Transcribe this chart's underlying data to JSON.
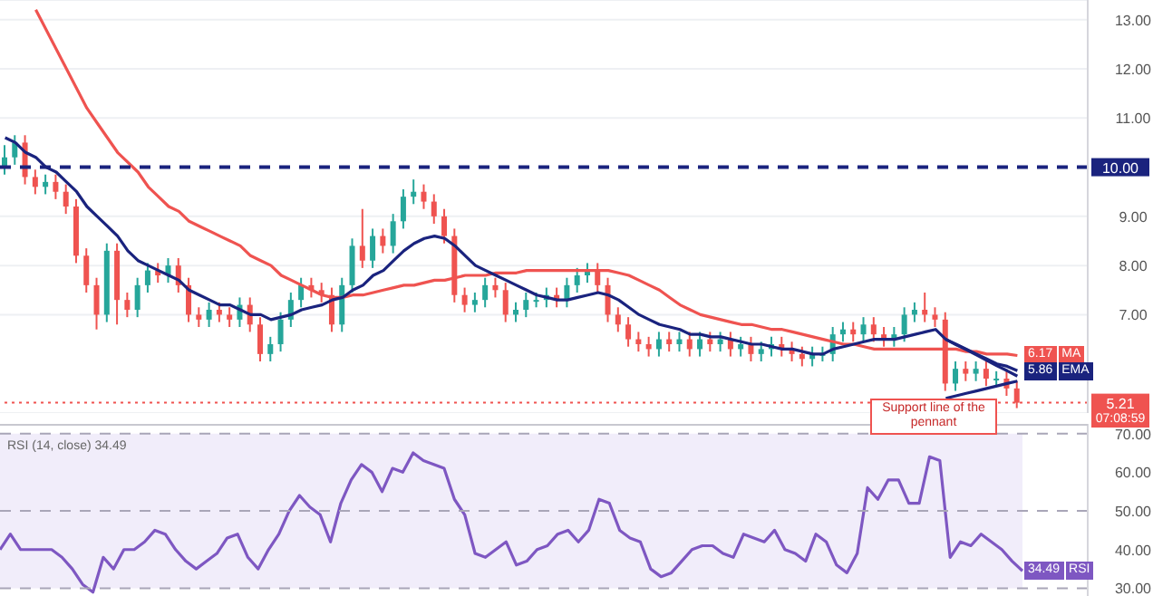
{
  "chart_data": [
    {
      "type": "candlestick",
      "categories": [
        null,
        null,
        null,
        null,
        null,
        null,
        null,
        null,
        null,
        null,
        null,
        null,
        null,
        null,
        null,
        null,
        null,
        null,
        null,
        null,
        null,
        null,
        null,
        null,
        null,
        null,
        null,
        null,
        null,
        null,
        null,
        null,
        null,
        null,
        null,
        null,
        null,
        null,
        null,
        null,
        null,
        null,
        null,
        null,
        null,
        null,
        null,
        null,
        null,
        null,
        null,
        null,
        null,
        null,
        null,
        null,
        null,
        null,
        null,
        null,
        null,
        null,
        null,
        null,
        null,
        null,
        null,
        null,
        null,
        null,
        null,
        null,
        null,
        null,
        null,
        null,
        null,
        null,
        null,
        null,
        null,
        null,
        null,
        null,
        null,
        null,
        null,
        null,
        null,
        null,
        null,
        null,
        null,
        null,
        null,
        null,
        null,
        null,
        null,
        null
      ],
      "ohlc": [
        [
          10.0,
          10.45,
          9.85,
          10.2
        ],
        [
          10.2,
          10.65,
          10.05,
          10.5
        ],
        [
          10.5,
          10.65,
          9.65,
          9.8
        ],
        [
          9.8,
          9.95,
          9.45,
          9.6
        ],
        [
          9.6,
          9.85,
          9.45,
          9.7
        ],
        [
          9.7,
          9.85,
          9.35,
          9.5
        ],
        [
          9.5,
          9.65,
          9.05,
          9.2
        ],
        [
          9.2,
          9.35,
          8.05,
          8.2
        ],
        [
          8.2,
          8.35,
          7.45,
          7.6
        ],
        [
          7.6,
          7.75,
          6.7,
          7.0
        ],
        [
          7.0,
          8.45,
          6.85,
          8.3
        ],
        [
          8.3,
          8.45,
          6.8,
          7.3
        ],
        [
          7.3,
          7.45,
          6.95,
          7.1
        ],
        [
          7.1,
          7.75,
          6.95,
          7.6
        ],
        [
          7.6,
          8.05,
          7.45,
          7.9
        ],
        [
          7.9,
          8.05,
          7.65,
          7.8
        ],
        [
          7.8,
          8.15,
          7.65,
          8.0
        ],
        [
          8.0,
          8.15,
          7.45,
          7.6
        ],
        [
          7.6,
          7.75,
          6.85,
          7.0
        ],
        [
          7.0,
          7.15,
          6.75,
          6.9
        ],
        [
          6.9,
          7.25,
          6.75,
          7.1
        ],
        [
          7.1,
          7.25,
          6.85,
          7.0
        ],
        [
          7.0,
          7.15,
          6.75,
          6.9
        ],
        [
          6.9,
          7.35,
          6.75,
          7.2
        ],
        [
          7.2,
          7.35,
          6.65,
          6.8
        ],
        [
          6.8,
          6.95,
          6.05,
          6.2
        ],
        [
          6.2,
          6.55,
          6.05,
          6.4
        ],
        [
          6.4,
          7.05,
          6.25,
          6.9
        ],
        [
          6.9,
          7.45,
          6.75,
          7.3
        ],
        [
          7.3,
          7.75,
          7.15,
          7.6
        ],
        [
          7.6,
          7.75,
          7.35,
          7.5
        ],
        [
          7.5,
          7.65,
          7.25,
          7.4
        ],
        [
          7.4,
          7.55,
          6.65,
          6.8
        ],
        [
          6.8,
          7.75,
          6.65,
          7.6
        ],
        [
          7.6,
          8.55,
          7.45,
          8.4
        ],
        [
          8.4,
          9.15,
          7.95,
          8.1
        ],
        [
          8.1,
          8.75,
          7.95,
          8.6
        ],
        [
          8.6,
          8.75,
          8.25,
          8.4
        ],
        [
          8.4,
          9.05,
          8.25,
          8.9
        ],
        [
          8.9,
          9.55,
          8.75,
          9.4
        ],
        [
          9.4,
          9.75,
          9.25,
          9.5
        ],
        [
          9.5,
          9.65,
          9.15,
          9.3
        ],
        [
          9.3,
          9.45,
          8.85,
          9.0
        ],
        [
          9.0,
          9.15,
          8.45,
          8.6
        ],
        [
          8.6,
          8.75,
          7.25,
          7.4
        ],
        [
          7.4,
          7.55,
          7.05,
          7.2
        ],
        [
          7.2,
          7.45,
          7.05,
          7.3
        ],
        [
          7.3,
          7.75,
          7.15,
          7.6
        ],
        [
          7.6,
          7.75,
          7.35,
          7.5
        ],
        [
          7.5,
          7.65,
          6.85,
          7.0
        ],
        [
          7.0,
          7.25,
          6.85,
          7.1
        ],
        [
          7.1,
          7.45,
          6.95,
          7.3
        ],
        [
          7.3,
          7.45,
          7.15,
          7.3
        ],
        [
          7.3,
          7.55,
          7.15,
          7.4
        ],
        [
          7.4,
          7.55,
          7.15,
          7.3
        ],
        [
          7.3,
          7.75,
          7.15,
          7.6
        ],
        [
          7.6,
          7.95,
          7.45,
          7.8
        ],
        [
          7.8,
          8.05,
          7.65,
          7.9
        ],
        [
          7.9,
          8.05,
          7.45,
          7.6
        ],
        [
          7.6,
          7.75,
          6.85,
          7.0
        ],
        [
          7.0,
          7.15,
          6.65,
          6.8
        ],
        [
          6.8,
          6.95,
          6.35,
          6.5
        ],
        [
          6.5,
          6.65,
          6.25,
          6.4
        ],
        [
          6.4,
          6.55,
          6.15,
          6.3
        ],
        [
          6.3,
          6.65,
          6.15,
          6.5
        ],
        [
          6.5,
          6.65,
          6.25,
          6.4
        ],
        [
          6.4,
          6.65,
          6.25,
          6.5
        ],
        [
          6.5,
          6.65,
          6.15,
          6.3
        ],
        [
          6.3,
          6.65,
          6.15,
          6.5
        ],
        [
          6.5,
          6.65,
          6.25,
          6.4
        ],
        [
          6.4,
          6.65,
          6.25,
          6.5
        ],
        [
          6.5,
          6.65,
          6.15,
          6.3
        ],
        [
          6.3,
          6.55,
          6.15,
          6.4
        ],
        [
          6.4,
          6.55,
          6.05,
          6.2
        ],
        [
          6.2,
          6.45,
          6.05,
          6.3
        ],
        [
          6.3,
          6.55,
          6.15,
          6.4
        ],
        [
          6.4,
          6.55,
          6.15,
          6.3
        ],
        [
          6.3,
          6.45,
          6.05,
          6.2
        ],
        [
          6.2,
          6.35,
          5.95,
          6.1
        ],
        [
          6.1,
          6.35,
          5.95,
          6.2
        ],
        [
          6.2,
          6.35,
          6.05,
          6.2
        ],
        [
          6.2,
          6.75,
          6.05,
          6.6
        ],
        [
          6.6,
          6.85,
          6.45,
          6.7
        ],
        [
          6.7,
          6.85,
          6.45,
          6.6
        ],
        [
          6.6,
          6.95,
          6.45,
          6.8
        ],
        [
          6.8,
          6.95,
          6.45,
          6.6
        ],
        [
          6.6,
          6.75,
          6.35,
          6.5
        ],
        [
          6.5,
          6.75,
          6.35,
          6.6
        ],
        [
          6.6,
          7.15,
          6.45,
          7.0
        ],
        [
          7.0,
          7.25,
          6.85,
          7.1
        ],
        [
          7.1,
          7.45,
          6.85,
          7.0
        ],
        [
          7.0,
          7.15,
          6.75,
          6.9
        ],
        [
          6.9,
          7.05,
          5.45,
          5.6
        ],
        [
          5.6,
          6.05,
          5.45,
          5.9
        ],
        [
          5.9,
          6.05,
          5.65,
          5.8
        ],
        [
          5.8,
          6.05,
          5.65,
          5.9
        ],
        [
          5.9,
          6.05,
          5.55,
          5.7
        ],
        [
          5.7,
          5.85,
          5.55,
          5.7
        ],
        [
          5.7,
          5.85,
          5.35,
          5.5
        ],
        [
          5.5,
          5.65,
          5.1,
          5.21
        ]
      ],
      "series": [
        {
          "name": "MA",
          "type": "line",
          "color": "#ef5350",
          "value_labels": [
            null,
            null,
            null,
            null,
            null,
            null,
            null,
            null,
            null,
            null,
            null,
            null,
            null,
            null,
            null,
            null,
            null,
            null,
            null,
            null,
            null,
            null,
            null,
            null,
            null,
            null,
            null,
            null,
            null,
            null,
            null,
            null,
            null,
            null,
            null,
            null,
            null,
            null,
            null,
            null,
            null,
            null,
            null,
            null,
            null,
            null,
            null,
            null,
            null,
            null,
            null,
            null,
            null,
            null,
            null,
            null,
            null,
            null,
            null,
            null,
            null,
            null,
            null,
            null,
            null,
            null,
            null,
            null,
            null,
            null,
            null,
            null,
            null,
            null,
            null,
            null,
            null,
            null,
            null,
            null,
            null,
            null,
            null,
            null,
            null,
            null,
            null,
            null,
            null,
            null,
            null,
            null,
            null,
            null,
            null,
            null,
            null,
            null,
            null,
            "6.17"
          ],
          "values": [
            null,
            null,
            null,
            13.2,
            12.8,
            12.4,
            12.0,
            11.6,
            11.2,
            10.9,
            10.6,
            10.3,
            10.1,
            9.9,
            9.6,
            9.4,
            9.2,
            9.1,
            8.9,
            8.8,
            8.7,
            8.6,
            8.5,
            8.4,
            8.2,
            8.1,
            8.0,
            7.8,
            7.7,
            7.6,
            7.5,
            7.4,
            7.35,
            7.35,
            7.4,
            7.4,
            7.45,
            7.5,
            7.55,
            7.6,
            7.6,
            7.65,
            7.7,
            7.7,
            7.75,
            7.8,
            7.8,
            7.8,
            7.85,
            7.85,
            7.85,
            7.9,
            7.9,
            7.9,
            7.9,
            7.9,
            7.9,
            7.9,
            7.9,
            7.9,
            7.85,
            7.8,
            7.7,
            7.6,
            7.5,
            7.35,
            7.2,
            7.1,
            7.0,
            6.95,
            6.9,
            6.85,
            6.8,
            6.8,
            6.75,
            6.7,
            6.7,
            6.65,
            6.6,
            6.55,
            6.5,
            6.45,
            6.4,
            6.4,
            6.35,
            6.3,
            6.3,
            6.3,
            6.3,
            6.3,
            6.3,
            6.3,
            6.3,
            6.3,
            6.25,
            6.25,
            6.2,
            6.2,
            6.2,
            6.17
          ]
        },
        {
          "name": "EMA",
          "type": "line",
          "color": "#1a237e",
          "value_labels": [
            null,
            null,
            null,
            null,
            null,
            null,
            null,
            null,
            null,
            null,
            null,
            null,
            null,
            null,
            null,
            null,
            null,
            null,
            null,
            null,
            null,
            null,
            null,
            null,
            null,
            null,
            null,
            null,
            null,
            null,
            null,
            null,
            null,
            null,
            null,
            null,
            null,
            null,
            null,
            null,
            null,
            null,
            null,
            null,
            null,
            null,
            null,
            null,
            null,
            null,
            null,
            null,
            null,
            null,
            null,
            null,
            null,
            null,
            null,
            null,
            null,
            null,
            null,
            null,
            null,
            null,
            null,
            null,
            null,
            null,
            null,
            null,
            null,
            null,
            null,
            null,
            null,
            null,
            null,
            null,
            null,
            null,
            null,
            null,
            null,
            null,
            null,
            null,
            null,
            null,
            null,
            null,
            null,
            null,
            null,
            null,
            null,
            null,
            null,
            "5.86"
          ],
          "values": [
            10.6,
            10.5,
            10.3,
            10.2,
            10.0,
            9.9,
            9.7,
            9.5,
            9.2,
            9.0,
            8.8,
            8.6,
            8.3,
            8.1,
            8.0,
            7.9,
            7.8,
            7.7,
            7.5,
            7.4,
            7.3,
            7.2,
            7.2,
            7.1,
            7.0,
            7.0,
            6.9,
            6.95,
            7.0,
            7.1,
            7.15,
            7.2,
            7.3,
            7.35,
            7.5,
            7.6,
            7.8,
            7.9,
            8.1,
            8.3,
            8.45,
            8.55,
            8.6,
            8.55,
            8.4,
            8.2,
            8.0,
            7.9,
            7.8,
            7.7,
            7.6,
            7.5,
            7.4,
            7.35,
            7.3,
            7.3,
            7.35,
            7.4,
            7.45,
            7.4,
            7.3,
            7.15,
            7.0,
            6.9,
            6.8,
            6.75,
            6.7,
            6.6,
            6.6,
            6.55,
            6.55,
            6.5,
            6.45,
            6.4,
            6.4,
            6.35,
            6.3,
            6.3,
            6.25,
            6.2,
            6.2,
            6.3,
            6.35,
            6.4,
            6.45,
            6.5,
            6.5,
            6.5,
            6.55,
            6.6,
            6.65,
            6.7,
            6.5,
            6.4,
            6.3,
            6.2,
            6.1,
            6.0,
            5.95,
            5.86
          ]
        },
        {
          "type": "line",
          "color": "#1a237e",
          "values": [
            null,
            null,
            null,
            null,
            null,
            null,
            null,
            null,
            null,
            null,
            null,
            null,
            null,
            null,
            null,
            null,
            null,
            null,
            null,
            null,
            null,
            null,
            null,
            null,
            null,
            null,
            null,
            null,
            null,
            null,
            null,
            null,
            null,
            null,
            null,
            null,
            null,
            null,
            null,
            null,
            null,
            null,
            null,
            null,
            null,
            null,
            null,
            null,
            null,
            null,
            null,
            null,
            null,
            null,
            null,
            null,
            null,
            null,
            null,
            null,
            null,
            null,
            null,
            null,
            null,
            null,
            null,
            null,
            null,
            null,
            null,
            null,
            null,
            null,
            null,
            null,
            null,
            null,
            null,
            null,
            null,
            null,
            null,
            null,
            null,
            null,
            null,
            null,
            null,
            null,
            null,
            null,
            6.5,
            6.39,
            6.29,
            6.18,
            6.07,
            5.96,
            5.86,
            5.75
          ]
        },
        {
          "type": "line",
          "color": "#1a237e",
          "values": [
            null,
            null,
            null,
            null,
            null,
            null,
            null,
            null,
            null,
            null,
            null,
            null,
            null,
            null,
            null,
            null,
            null,
            null,
            null,
            null,
            null,
            null,
            null,
            null,
            null,
            null,
            null,
            null,
            null,
            null,
            null,
            null,
            null,
            null,
            null,
            null,
            null,
            null,
            null,
            null,
            null,
            null,
            null,
            null,
            null,
            null,
            null,
            null,
            null,
            null,
            null,
            null,
            null,
            null,
            null,
            null,
            null,
            null,
            null,
            null,
            null,
            null,
            null,
            null,
            null,
            null,
            null,
            null,
            null,
            null,
            null,
            null,
            null,
            null,
            null,
            null,
            null,
            null,
            null,
            null,
            null,
            null,
            null,
            null,
            null,
            null,
            null,
            null,
            null,
            null,
            null,
            null,
            5.3,
            5.35,
            5.4,
            5.45,
            5.5,
            5.55,
            5.6,
            5.65
          ]
        }
      ],
      "ylim": [
        5.0,
        13.4
      ],
      "yticks": [
        {
          "value": 7,
          "label": "7.00"
        },
        {
          "value": 8,
          "label": "8.00"
        },
        {
          "value": 9,
          "label": "9.00"
        },
        {
          "value": 11,
          "label": "11.00"
        },
        {
          "value": 12,
          "label": "12.00"
        },
        {
          "value": 13,
          "label": "13.00"
        }
      ],
      "ref_lines": [
        {
          "axis": "y",
          "value": 10,
          "label": "10.00",
          "color": "#1a237e",
          "line_style": "dashed"
        },
        {
          "axis": "y",
          "value": 5.21,
          "label": "5.21",
          "color": "#ef5350",
          "line_style": "dotted"
        }
      ],
      "annotations": [
        "Support line of the pennant",
        "07:08:59"
      ],
      "grid": "y",
      "tick_labels": "y",
      "legend": "right"
    },
    {
      "type": "line",
      "title": "RSI (14, close) 34.49",
      "categories": [
        null,
        null,
        null,
        null,
        null,
        null,
        null,
        null,
        null,
        null,
        null,
        null,
        null,
        null,
        null,
        null,
        null,
        null,
        null,
        null,
        null,
        null,
        null,
        null,
        null,
        null,
        null,
        null,
        null,
        null,
        null,
        null,
        null,
        null,
        null,
        null,
        null,
        null,
        null,
        null,
        null,
        null,
        null,
        null,
        null,
        null,
        null,
        null,
        null,
        null,
        null,
        null,
        null,
        null,
        null,
        null,
        null,
        null,
        null,
        null,
        null,
        null,
        null,
        null,
        null,
        null,
        null,
        null,
        null,
        null,
        null,
        null,
        null,
        null,
        null,
        null,
        null,
        null,
        null,
        null,
        null,
        null,
        null,
        null,
        null,
        null,
        null,
        null,
        null,
        null,
        null,
        null,
        null,
        null,
        null,
        null,
        null,
        null,
        null,
        null
      ],
      "series": [
        {
          "name": "RSI",
          "color": "#7e57c2",
          "value_labels": [
            null,
            null,
            null,
            null,
            null,
            null,
            null,
            null,
            null,
            null,
            null,
            null,
            null,
            null,
            null,
            null,
            null,
            null,
            null,
            null,
            null,
            null,
            null,
            null,
            null,
            null,
            null,
            null,
            null,
            null,
            null,
            null,
            null,
            null,
            null,
            null,
            null,
            null,
            null,
            null,
            null,
            null,
            null,
            null,
            null,
            null,
            null,
            null,
            null,
            null,
            null,
            null,
            null,
            null,
            null,
            null,
            null,
            null,
            null,
            null,
            null,
            null,
            null,
            null,
            null,
            null,
            null,
            null,
            null,
            null,
            null,
            null,
            null,
            null,
            null,
            null,
            null,
            null,
            null,
            null,
            null,
            null,
            null,
            null,
            null,
            null,
            null,
            null,
            null,
            null,
            null,
            null,
            null,
            null,
            null,
            null,
            null,
            null,
            null,
            "34.49"
          ],
          "values": [
            40,
            44,
            40,
            40,
            40,
            40,
            38,
            35,
            31,
            29,
            38,
            35,
            40,
            40,
            42,
            45,
            44,
            40,
            37,
            35,
            37,
            39,
            43,
            44,
            38,
            35,
            40,
            44,
            50,
            54,
            51,
            49,
            42,
            52,
            58,
            62,
            60,
            55,
            61,
            60,
            65,
            63,
            62,
            61,
            53,
            49,
            39,
            38,
            40,
            42,
            36,
            37,
            40,
            41,
            44,
            45,
            42,
            45,
            53,
            52,
            45,
            43,
            42,
            35,
            33,
            34,
            37,
            40,
            41,
            41,
            39,
            38,
            44,
            43,
            42,
            45,
            40,
            39,
            37,
            44,
            42,
            36,
            34,
            39,
            56,
            53,
            58,
            58,
            52,
            52,
            64,
            63,
            38,
            42,
            41,
            44,
            42,
            40,
            37,
            34.49
          ]
        }
      ],
      "ylim": [
        28,
        72.5
      ],
      "yticks": [
        {
          "value": 30,
          "label": "30.00"
        },
        {
          "value": 40,
          "label": "40.00"
        },
        {
          "value": 50,
          "label": "50.00"
        },
        {
          "value": 60,
          "label": "60.00"
        },
        {
          "value": 70,
          "label": "70.00"
        }
      ],
      "ref_lines": [
        {
          "axis": "y",
          "value": 70,
          "label": null,
          "color": "#a9a6b8",
          "line_style": "dashed"
        },
        {
          "axis": "y",
          "value": 50,
          "label": null,
          "color": "#a9a6b8",
          "line_style": "dashed"
        },
        {
          "axis": "y",
          "value": 30,
          "label": null,
          "color": "#a9a6b8",
          "line_style": "dashed"
        }
      ],
      "bands": [
        {
          "axis": "y",
          "from": 30,
          "to": 70,
          "color": "#f1edfa"
        }
      ],
      "tick_labels": "y",
      "legend": "right"
    }
  ]
}
